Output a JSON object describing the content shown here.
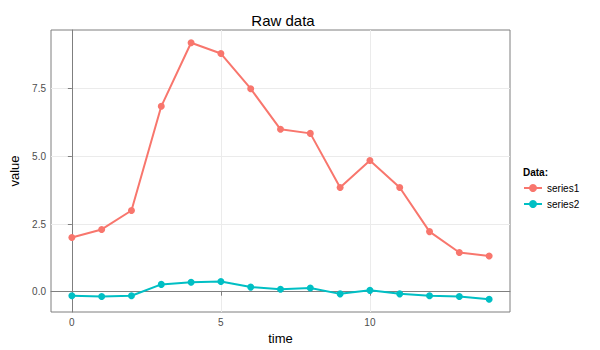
{
  "chart_data": {
    "type": "line",
    "title": "Raw data",
    "x_label": "time",
    "y_label": "value",
    "legend_title": "Data:",
    "legend": "right",
    "grid": true,
    "marker": "circle",
    "x": [
      0,
      1,
      2,
      3,
      4,
      5,
      6,
      7,
      8,
      9,
      10,
      11,
      12,
      13,
      14
    ],
    "series": [
      {
        "name": "series1",
        "color": "#F8766D",
        "values": [
          2.0,
          2.3,
          3.0,
          6.85,
          9.2,
          8.8,
          7.5,
          6.0,
          5.85,
          3.85,
          4.85,
          3.85,
          2.22,
          1.45,
          1.32
        ]
      },
      {
        "name": "series2",
        "color": "#00BFC4",
        "values": [
          -0.15,
          -0.18,
          -0.15,
          0.27,
          0.35,
          0.38,
          0.17,
          0.09,
          0.14,
          -0.08,
          0.05,
          -0.08,
          -0.15,
          -0.18,
          -0.28
        ]
      }
    ],
    "xlim": [
      -0.7,
      14.7
    ],
    "xticks": [
      0,
      5,
      10
    ],
    "ylim": [
      -0.75,
      9.67
    ],
    "yticks": [
      {
        "value": 0,
        "label": "0.0"
      },
      {
        "value": 2.5,
        "label": "2.5"
      },
      {
        "value": 5,
        "label": "5.0"
      },
      {
        "value": 7.5,
        "label": "7.5"
      }
    ]
  }
}
